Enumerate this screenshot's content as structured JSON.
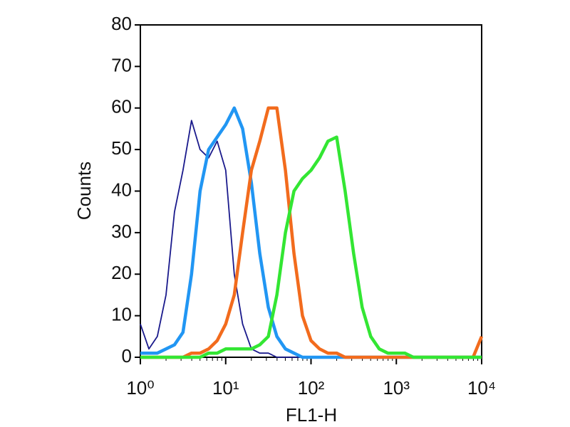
{
  "chart_data": {
    "type": "line",
    "xlabel": "FL1-H",
    "ylabel": "Counts",
    "xscale": "log",
    "x": [
      1,
      1.26,
      1.58,
      2,
      2.51,
      3.16,
      3.98,
      5.01,
      6.31,
      7.94,
      10,
      12.6,
      15.8,
      20,
      25.1,
      31.6,
      39.8,
      50.1,
      63.1,
      79.4,
      100,
      126,
      158,
      200,
      251,
      316,
      398,
      501,
      631,
      794,
      1000,
      1259,
      1585,
      1995,
      2512,
      3162,
      3981,
      5012,
      6310,
      7943,
      10000
    ],
    "series": [
      {
        "color": "#1a1a8c",
        "values": [
          8,
          2,
          5,
          15,
          35,
          45,
          57,
          50,
          48,
          52,
          45,
          20,
          8,
          2,
          1,
          1,
          0,
          0,
          0,
          0,
          0,
          0,
          0,
          0,
          0,
          0,
          0,
          0,
          0,
          0,
          0,
          0,
          0,
          0,
          0,
          0,
          0,
          0,
          0,
          0,
          0
        ]
      },
      {
        "color": "#2196f3",
        "values": [
          1,
          1,
          1,
          2,
          3,
          6,
          20,
          40,
          50,
          53,
          56,
          60,
          55,
          42,
          25,
          12,
          5,
          2,
          1,
          0,
          0,
          0,
          0,
          0,
          0,
          0,
          0,
          0,
          0,
          0,
          0,
          0,
          0,
          0,
          0,
          0,
          0,
          0,
          0,
          0,
          0
        ]
      },
      {
        "color": "#f26b1d",
        "values": [
          0,
          0,
          0,
          0,
          0,
          0,
          1,
          1,
          2,
          4,
          8,
          15,
          30,
          45,
          52,
          60,
          60,
          45,
          25,
          10,
          4,
          2,
          1,
          1,
          0,
          0,
          0,
          0,
          0,
          0,
          0,
          0,
          0,
          0,
          0,
          0,
          0,
          0,
          0,
          0,
          5
        ]
      },
      {
        "color": "#33e633",
        "values": [
          0,
          0,
          0,
          0,
          0,
          0,
          0,
          0,
          1,
          1,
          2,
          2,
          2,
          2,
          3,
          5,
          15,
          30,
          40,
          43,
          45,
          48,
          52,
          53,
          40,
          25,
          12,
          5,
          2,
          1,
          1,
          1,
          0,
          0,
          0,
          0,
          0,
          0,
          0,
          0,
          0
        ]
      }
    ],
    "xlim": [
      1,
      10000
    ],
    "xticks": [
      {
        "value": 1,
        "label": "10⁰"
      },
      {
        "value": 10,
        "label": "10¹"
      },
      {
        "value": 100,
        "label": "10²"
      },
      {
        "value": 1000,
        "label": "10³"
      },
      {
        "value": 10000,
        "label": "10⁴"
      }
    ],
    "ylim": [
      0,
      80
    ],
    "yticks": [
      0,
      10,
      20,
      30,
      40,
      50,
      60,
      70,
      80
    ]
  }
}
